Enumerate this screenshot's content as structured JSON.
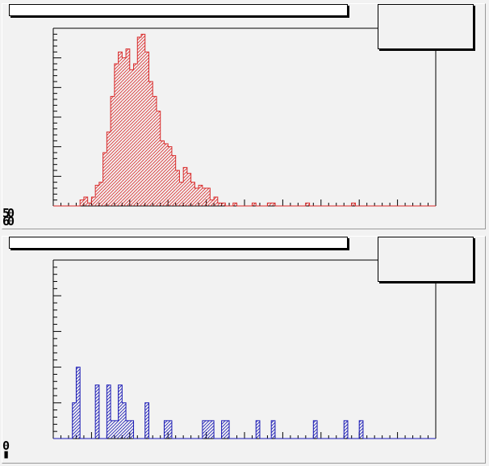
{
  "chart_data": [
    {
      "type": "histogram",
      "title": "",
      "stats_text": "",
      "xlabel": "",
      "ylabel": "",
      "y_axis_labels": [
        "50",
        "60"
      ],
      "color": "#d92b2b",
      "fill_pattern": "diagonal-hatch",
      "xlim": [
        0,
        100
      ],
      "ylim": [
        0,
        60
      ],
      "bin_width": 1,
      "bin_start": 0,
      "values": [
        0,
        0,
        0,
        0,
        0,
        0,
        0,
        2,
        3,
        1,
        3,
        7,
        8,
        18,
        25,
        37,
        48,
        52,
        50,
        53,
        46,
        48,
        57,
        58,
        52,
        42,
        37,
        32,
        22,
        21,
        20,
        17,
        12,
        8,
        13,
        11,
        8,
        6,
        7,
        6,
        6,
        2,
        3,
        1,
        1,
        0,
        0,
        1,
        0,
        0,
        0,
        0,
        1,
        0,
        0,
        0,
        1,
        1,
        0,
        0,
        0,
        0,
        0,
        0,
        0,
        0,
        1,
        0,
        0,
        0,
        0,
        0,
        0,
        0,
        0,
        0,
        0,
        0,
        1,
        0,
        0,
        0,
        0,
        0,
        0,
        0,
        0,
        0,
        0,
        0,
        0,
        0,
        0,
        0,
        0,
        0,
        0,
        0,
        0,
        0
      ]
    },
    {
      "type": "histogram",
      "title": "",
      "stats_text": "",
      "xlabel": "",
      "ylabel": "",
      "y_axis_labels": [
        "0"
      ],
      "color": "#1b1bb5",
      "fill_pattern": "diagonal-hatch",
      "xlim": [
        0,
        100
      ],
      "ylim": [
        0,
        10
      ],
      "bin_width": 1,
      "bin_start": 0,
      "values": [
        0,
        0,
        0,
        0,
        0,
        2,
        4,
        0,
        0,
        0,
        0,
        3,
        0,
        0,
        3,
        1,
        1,
        3,
        2,
        1,
        1,
        0,
        0,
        0,
        2,
        0,
        0,
        0,
        0,
        1,
        1,
        0,
        0,
        0,
        0,
        0,
        0,
        0,
        0,
        1,
        1,
        1,
        0,
        0,
        1,
        1,
        0,
        0,
        0,
        0,
        0,
        0,
        0,
        1,
        0,
        0,
        0,
        1,
        0,
        0,
        0,
        0,
        0,
        0,
        0,
        0,
        0,
        0,
        1,
        0,
        0,
        0,
        0,
        0,
        0,
        0,
        1,
        0,
        0,
        0,
        1,
        0,
        0,
        0,
        0,
        0,
        0,
        0,
        0,
        0,
        0,
        0,
        0,
        0,
        0,
        0,
        0,
        0,
        0,
        0
      ]
    }
  ]
}
